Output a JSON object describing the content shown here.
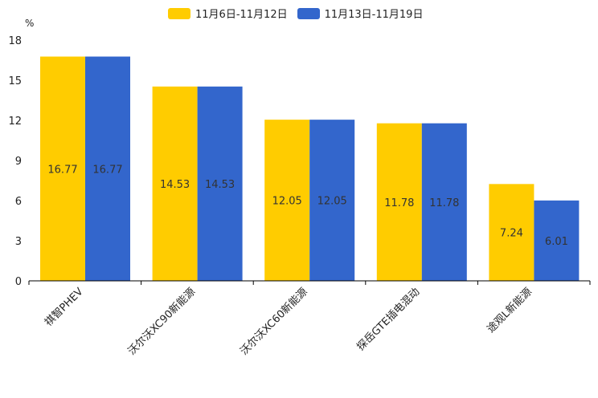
{
  "chart_data": {
    "type": "bar",
    "unit_label": "%",
    "categories": [
      "祺智PHEV",
      "沃尔沃XC90新能源",
      "沃尔沃XC60新能源",
      "探岳GTE插电混动",
      "途观L新能源"
    ],
    "series": [
      {
        "name": "11月6日-11月12日",
        "color": "#FFCC00",
        "values": [
          16.77,
          14.53,
          12.05,
          11.78,
          7.24
        ]
      },
      {
        "name": "11月13日-11月19日",
        "color": "#3366CC",
        "values": [
          16.77,
          14.53,
          12.05,
          11.78,
          6.01
        ]
      }
    ],
    "yticks": [
      0,
      3,
      6,
      9,
      12,
      15,
      18
    ],
    "ylim": [
      0,
      18
    ],
    "legend_position": "top-center"
  }
}
